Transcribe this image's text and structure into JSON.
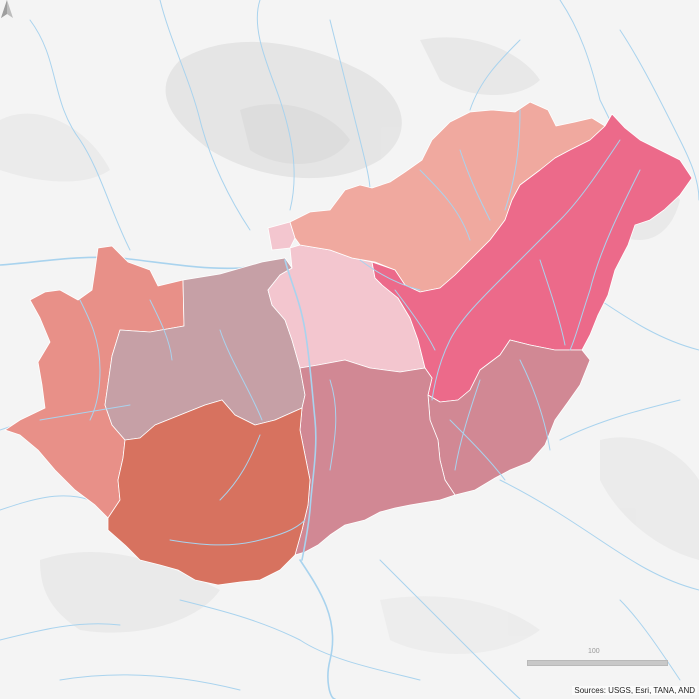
{
  "map": {
    "colors": {
      "background": "#f4f4f4",
      "hillshade": "#e3e3e3",
      "rivers": "#a9d3ee",
      "region_borders": "#ffffff"
    },
    "regions": [
      {
        "id": "northern-hungary",
        "color": "#f0a99f"
      },
      {
        "id": "northern-great-plain",
        "color": "#ec6a8a"
      },
      {
        "id": "budapest",
        "color": "#f3c6cf"
      },
      {
        "id": "pest",
        "color": "#f3c6cf"
      },
      {
        "id": "central-transdanubia",
        "color": "#c6a0a6"
      },
      {
        "id": "western-transdanubia",
        "color": "#e89088"
      },
      {
        "id": "southern-transdanubia",
        "color": "#d7725f"
      },
      {
        "id": "southern-great-plain",
        "color": "#d18894"
      },
      {
        "id": "jasz-nagykun-szolnok-pocket",
        "color": "#d18894"
      }
    ],
    "scale": {
      "label": "100"
    },
    "attribution": "Sources: USGS, Esri, TANA, AND"
  }
}
